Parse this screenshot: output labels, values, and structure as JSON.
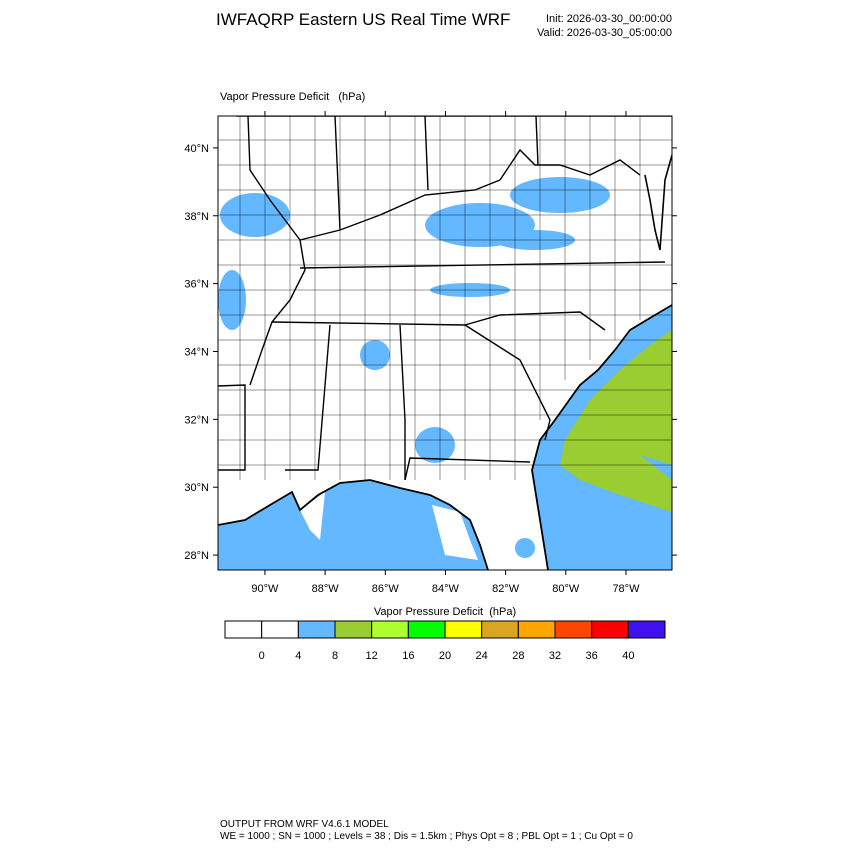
{
  "header": {
    "title": "IWFAQRP Eastern US Real Time WRF",
    "init": "Init: 2026-03-30_00:00:00",
    "valid": "Valid: 2026-03-30_05:00:00"
  },
  "map": {
    "label": "Vapor Pressure Deficit   (hPa)",
    "lonlim": [
      -91.56,
      -76.47
    ],
    "latlim": [
      27.56,
      40.94
    ],
    "lon_ticks": [
      {
        "value": -90,
        "label": "90°W"
      },
      {
        "value": -88,
        "label": "88°W"
      },
      {
        "value": -86,
        "label": "86°W"
      },
      {
        "value": -84,
        "label": "84°W"
      },
      {
        "value": -82,
        "label": "82°W"
      },
      {
        "value": -80,
        "label": "80°W"
      },
      {
        "value": -78,
        "label": "78°W"
      }
    ],
    "lat_ticks": [
      {
        "value": 28,
        "label": "28°N"
      },
      {
        "value": 30,
        "label": "30°N"
      },
      {
        "value": 32,
        "label": "32°N"
      },
      {
        "value": 34,
        "label": "34°N"
      },
      {
        "value": 36,
        "label": "36°N"
      },
      {
        "value": 38,
        "label": "38°N"
      },
      {
        "value": 40,
        "label": "40°N"
      }
    ]
  },
  "colorbar": {
    "title": "Vapor Pressure Deficit  (hPa)",
    "levels": [
      0,
      4,
      8,
      12,
      16,
      20,
      24,
      28,
      32,
      36,
      40
    ],
    "colors": [
      "#ffffff",
      "#ffffff",
      "#63b8ff",
      "#9acd32",
      "#adff2f",
      "#00ff00",
      "#ffff00",
      "#daa520",
      "#ffa500",
      "#ff4500",
      "#ff0000",
      "#4010ee"
    ]
  },
  "footer": {
    "line1": "OUTPUT FROM WRF V4.6.1 MODEL",
    "line2": "WE = 1000 ; SN = 1000 ; Levels = 38 ; Dis = 1.5km ; Phys Opt = 8 ; PBL Opt = 1 ; Cu Opt = 0"
  }
}
